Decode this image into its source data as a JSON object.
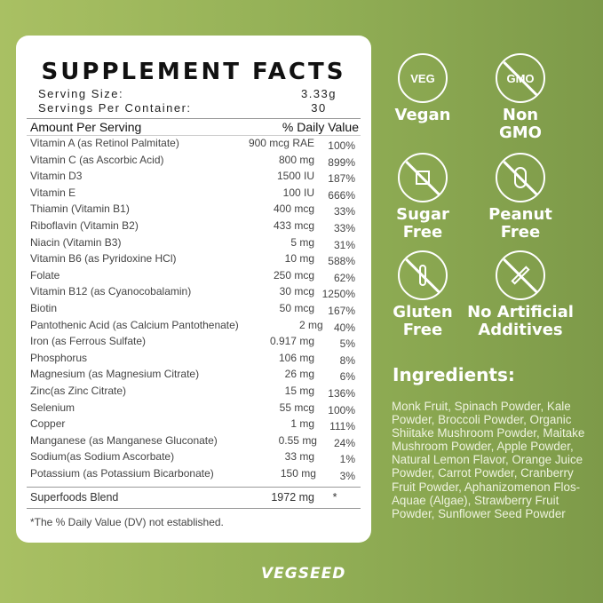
{
  "facts": {
    "title": "SUPPLEMENT FACTS",
    "serving_size_label": "Serving Size:",
    "serving_size": "3.33g",
    "servings_label": "Servings Per Container:",
    "servings": "30",
    "amount_header": "Amount Per Serving",
    "dv_header": "% Daily Value",
    "rows": [
      {
        "name": "Vitamin A (as Retinol Palmitate)",
        "amount": "900 mcg RAE",
        "dv": "100%"
      },
      {
        "name": "Vitamin C (as Ascorbic Acid)",
        "amount": "800 mg",
        "dv": "899%"
      },
      {
        "name": "Vitamin D3",
        "amount": "1500 IU",
        "dv": "187%"
      },
      {
        "name": "Vitamin E",
        "amount": "100 IU",
        "dv": "666%"
      },
      {
        "name": "Thiamin (Vitamin B1)",
        "amount": "400 mcg",
        "dv": "33%"
      },
      {
        "name": "Riboflavin (Vitamin B2)",
        "amount": "433 mcg",
        "dv": "33%"
      },
      {
        "name": "Niacin (Vitamin B3)",
        "amount": "5 mg",
        "dv": "31%"
      },
      {
        "name": "Vitamin B6 (as Pyridoxine HCl)",
        "amount": "10 mg",
        "dv": "588%"
      },
      {
        "name": "Folate",
        "amount": "250 mcg",
        "dv": "62%"
      },
      {
        "name": "Vitamin B12 (as Cyanocobalamin)",
        "amount": "30 mcg",
        "dv": "1250%"
      },
      {
        "name": "Biotin",
        "amount": "50 mcg",
        "dv": "167%"
      },
      {
        "name": "Pantothenic Acid (as Calcium Pantothenate)",
        "amount": "2 mg",
        "dv": "40%"
      },
      {
        "name": "Iron (as Ferrous Sulfate)",
        "amount": "0.917 mg",
        "dv": "5%"
      },
      {
        "name": "Phosphorus",
        "amount": "106 mg",
        "dv": "8%"
      },
      {
        "name": "Magnesium (as Magnesium Citrate)",
        "amount": "26 mg",
        "dv": "6%"
      },
      {
        "name": "Zinc(as Zinc Citrate)",
        "amount": "15 mg",
        "dv": "136%"
      },
      {
        "name": "Selenium",
        "amount": "55 mcg",
        "dv": "100%"
      },
      {
        "name": "Copper",
        "amount": "1 mg",
        "dv": "111%"
      },
      {
        "name": "Manganese (as Manganese Gluconate)",
        "amount": "0.55 mg",
        "dv": "24%"
      },
      {
        "name": "Sodium(as Sodium Ascorbate)",
        "amount": "33 mg",
        "dv": "1%"
      },
      {
        "name": "Potassium (as Potassium Bicarbonate)",
        "amount": "150 mg",
        "dv": "3%"
      }
    ],
    "blend": {
      "name": "Superfoods Blend",
      "amount": "1972 mg",
      "dv": "*"
    },
    "footnote": "*The % Daily Value (DV) not established."
  },
  "badges": [
    {
      "icon": "veg-icon",
      "icon_text": "VEG",
      "label": "Vegan"
    },
    {
      "icon": "no-gmo-icon",
      "icon_text": "GMO",
      "label": "Non GMO"
    },
    {
      "icon": "no-sugar-icon",
      "label": "Sugar Free"
    },
    {
      "icon": "no-peanut-icon",
      "label": "Peanut Free"
    },
    {
      "icon": "no-gluten-icon",
      "label": "Gluten Free"
    },
    {
      "icon": "no-additives-icon",
      "label": "No Artificial Additives"
    }
  ],
  "ingredients": {
    "title": "Ingredients:",
    "text": "Monk Fruit, Spinach Powder, Kale Powder, Broccoli Powder, Organic Shiitake Mushroom Powder, Maitake Mushroom Powder, Apple Powder, Natural Lemon Flavor, Orange Juice Powder, Carrot Powder, Cranberry Fruit Powder, Aphanizomenon Flos-Aquae (Algae), Strawberry Fruit Powder, Sunflower Seed Powder"
  },
  "brand": "VEGSEED"
}
